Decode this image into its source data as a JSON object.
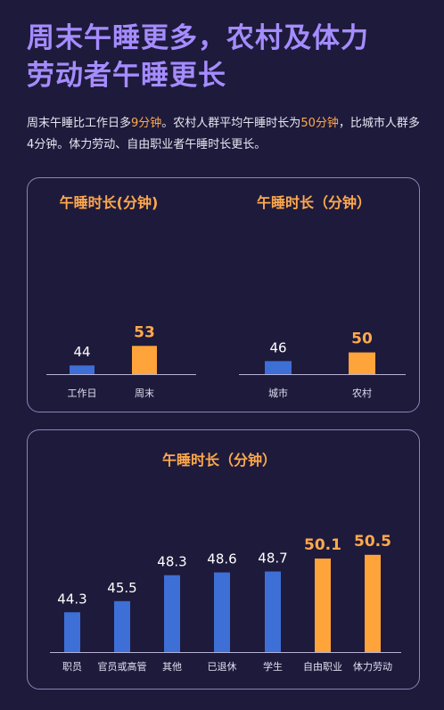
{
  "header": {
    "title_line1": "周末午睡更多，农村及体力",
    "title_line2": "劳动者午睡更长"
  },
  "description": {
    "p1": "周末午睡比工作日多",
    "v1": "9分钟",
    "p2": "。农村人群平均午睡时长为",
    "v2": "50分钟",
    "p3": "，比城市人群多4分钟。体力劳动、自由职业者午睡时长更长。"
  },
  "colors": {
    "background": "#1e1a3b",
    "title": "#a58cff",
    "highlight": "#ffa94d",
    "bar_blue": "#3d6fd6",
    "bar_orange": "#ffa43a"
  },
  "chart_data": [
    {
      "type": "bar",
      "title": "午睡时长(分钟)",
      "categories": [
        "工作日",
        "周末"
      ],
      "values": [
        44,
        53
      ],
      "highlight": [
        false,
        true
      ]
    },
    {
      "type": "bar",
      "title": "午睡时长（分钟）",
      "categories": [
        "城市",
        "农村"
      ],
      "values": [
        46,
        50
      ],
      "highlight": [
        false,
        true
      ]
    },
    {
      "type": "bar",
      "title": "午睡时长（分钟）",
      "categories": [
        "职员",
        "官员或高管",
        "其他",
        "已退休",
        "学生",
        "自由职业",
        "体力劳动"
      ],
      "values": [
        44.3,
        45.5,
        48.3,
        48.6,
        48.7,
        50.1,
        50.5
      ],
      "highlight": [
        false,
        false,
        false,
        false,
        false,
        true,
        true
      ]
    }
  ]
}
